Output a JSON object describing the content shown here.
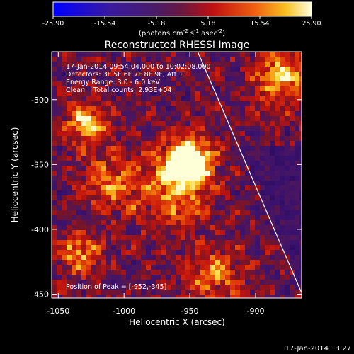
{
  "chart_data": {
    "type": "heatmap",
    "title": "Reconstructed RHESSI Image",
    "xlabel": "Heliocentric X (arcsec)",
    "ylabel": "Heliocentric Y (arcsec)",
    "xlim": [
      -1055,
      -865
    ],
    "ylim": [
      -453,
      -263
    ],
    "x_ticks": [
      -1050,
      -1000,
      -950,
      -900
    ],
    "y_ticks": [
      -300,
      -350,
      -400,
      -450
    ],
    "colorbar": {
      "ticks": [
        "-25.90",
        "-15.54",
        "-5.18",
        "5.18",
        "15.54",
        "25.90"
      ],
      "unit_label": "(photons cm",
      "unit_parts": [
        "(photons cm",
        "-2",
        " s",
        "-1",
        " asec",
        "-2",
        ")"
      ],
      "range": [
        -25.9,
        25.9
      ]
    },
    "info_lines": [
      "17-Jan-2014 09:54:04.000 to 10:02:08.000",
      "Detectors: 3F 5F 6F 7F 8F 9F, Att 1",
      "Energy Range: 3.0 - 6.0 keV",
      "Clean    Total counts: 2.93E+04"
    ],
    "peak_label": "Position of Peak = [-952,-345]",
    "peak": {
      "x": -952,
      "y": -345
    },
    "limb_line": {
      "x1": -944,
      "y1": -263,
      "x2": -865,
      "y2": -449
    },
    "footer_date": "17-Jan-2014 13:27"
  },
  "colors": {
    "background": "#000000",
    "foreground": "#ffffff",
    "colormap": [
      "#0000ff",
      "#2a0a8c",
      "#4c1f6e",
      "#3c145a",
      "#8a1a2a",
      "#c8140c",
      "#e8500a",
      "#f5a000",
      "#fff070",
      "#ffffff"
    ]
  }
}
